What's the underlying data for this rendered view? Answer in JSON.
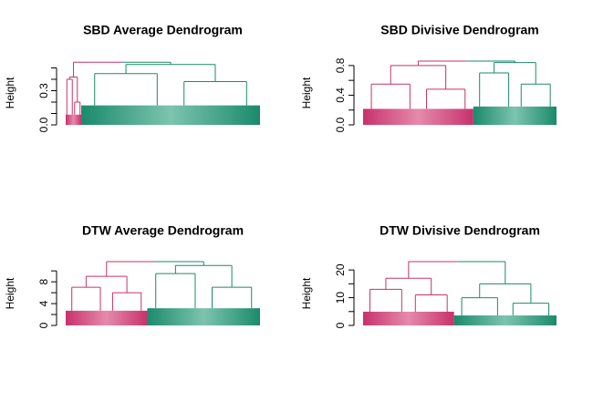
{
  "chart_data": [
    {
      "type": "dendrogram",
      "title": "SBD Average Dendrogram",
      "y_label": "Height",
      "ylim": [
        0,
        0.56
      ],
      "yticks": [
        {
          "value": 0,
          "label": "0.0"
        },
        {
          "value": 0.1,
          "label": null
        },
        {
          "value": 0.2,
          "label": null
        },
        {
          "value": 0.3,
          "label": "0.3"
        },
        {
          "value": 0.4,
          "label": null
        },
        {
          "value": 0.5,
          "label": null
        }
      ],
      "root_height": 0.55,
      "branches": [
        {
          "color": "#c7326c",
          "share": 0.08,
          "height": 0.42,
          "children": [
            0.4,
            0.2
          ]
        },
        {
          "color": "#1b8a6b",
          "share": 0.92,
          "height": 0.53,
          "children": [
            0.45,
            0.38
          ]
        }
      ]
    },
    {
      "type": "dendrogram",
      "title": "SBD Divisive Dendrogram",
      "y_label": "Height",
      "ylim": [
        0,
        0.86
      ],
      "yticks": [
        {
          "value": 0,
          "label": "0.0"
        },
        {
          "value": 0.2,
          "label": null
        },
        {
          "value": 0.4,
          "label": "0.4"
        },
        {
          "value": 0.6,
          "label": null
        },
        {
          "value": 0.8,
          "label": "0.8"
        }
      ],
      "root_height": 0.86,
      "branches": [
        {
          "color": "#c7326c",
          "share": 0.57,
          "height": 0.8,
          "children": [
            0.55,
            0.48
          ]
        },
        {
          "color": "#1b8a6b",
          "share": 0.43,
          "height": 0.84,
          "children": [
            0.7,
            0.55
          ]
        }
      ]
    },
    {
      "type": "dendrogram",
      "title": "DTW Average Dendrogram",
      "y_label": "Height",
      "ylim": [
        0,
        11.7
      ],
      "yticks": [
        0,
        {
          "value": 2,
          "label": null
        },
        4,
        {
          "value": 6,
          "label": null
        },
        8,
        {
          "value": 10,
          "label": null
        }
      ],
      "root_height": 11.7,
      "branches": [
        {
          "color": "#c7326c",
          "share": 0.42,
          "height": 9,
          "children": [
            7,
            6
          ]
        },
        {
          "color": "#1b8a6b",
          "share": 0.58,
          "height": 11,
          "children": [
            9.5,
            7
          ]
        }
      ]
    },
    {
      "type": "dendrogram",
      "title": "DTW Divisive Dendrogram",
      "y_label": "Height",
      "ylim": [
        0,
        23
      ],
      "yticks": [
        0,
        {
          "value": 5,
          "label": null
        },
        10,
        {
          "value": 15,
          "label": null
        },
        20
      ],
      "root_height": 23,
      "branches": [
        {
          "color": "#c7326c",
          "share": 0.47,
          "height": 17,
          "children": [
            13,
            11
          ]
        },
        {
          "color": "#1b8a6b",
          "share": 0.53,
          "height": 15,
          "children": [
            10,
            8
          ]
        }
      ]
    }
  ]
}
